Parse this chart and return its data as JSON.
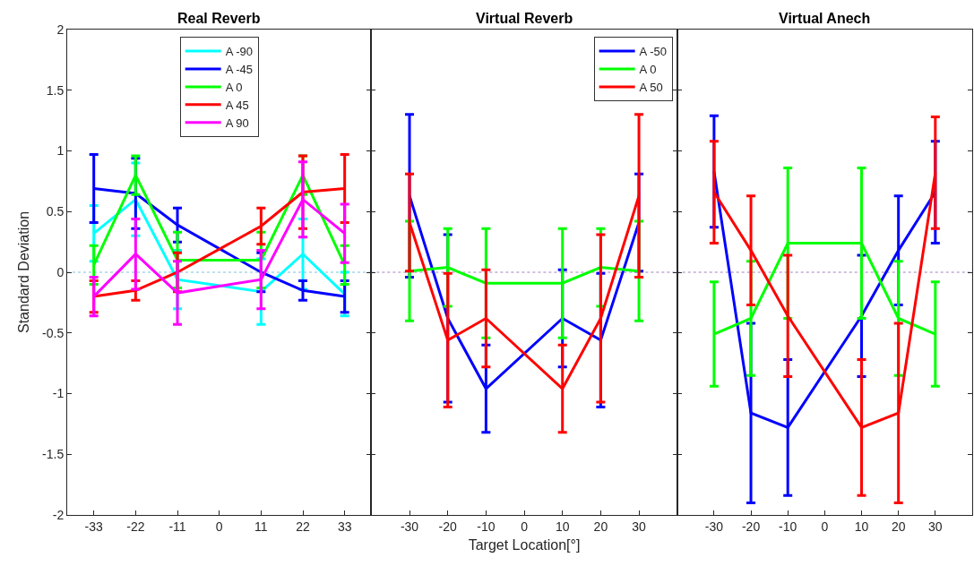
{
  "chart_data": [
    {
      "type": "line",
      "title": "Real Reverb",
      "ylabel": "Standard Deviation",
      "x": [
        -33,
        -22,
        -11,
        11,
        22,
        33
      ],
      "xlim": [
        -40,
        40
      ],
      "xticks": [
        -33,
        -22,
        -11,
        0,
        11,
        22,
        33
      ],
      "ylim": [
        -2,
        2
      ],
      "yticks": [
        -2,
        -1.5,
        -1,
        -0.5,
        0,
        0.5,
        1,
        1.5,
        2
      ],
      "grid": false,
      "legend": "top",
      "marker": "none",
      "line_style": "solid",
      "ref_lines": [
        {
          "axis": "y",
          "value": 0,
          "color": "#7fbfdf",
          "line_style": "dotted"
        }
      ],
      "series": [
        {
          "name": "A -90",
          "color": "#00ffff",
          "values": [
            0.32,
            0.6,
            -0.06,
            -0.16,
            0.15,
            -0.18
          ],
          "errors": [
            0.23,
            0.3,
            0.24,
            0.27,
            0.29,
            0.18
          ]
        },
        {
          "name": "A -45",
          "color": "#0000ff",
          "values": [
            0.69,
            0.65,
            0.39,
            0.0,
            -0.15,
            -0.2
          ],
          "errors": [
            0.28,
            0.29,
            0.14,
            0.16,
            0.08,
            0.13
          ]
        },
        {
          "name": "A 0",
          "color": "#00ff00",
          "values": [
            0.06,
            0.8,
            0.1,
            0.1,
            0.8,
            0.06
          ],
          "errors": [
            0.16,
            0.16,
            0.23,
            0.23,
            0.16,
            0.16
          ]
        },
        {
          "name": "A 45",
          "color": "#ff0000",
          "values": [
            -0.2,
            -0.15,
            0.0,
            0.38,
            0.66,
            0.69
          ],
          "errors": [
            0.13,
            0.08,
            0.16,
            0.15,
            0.3,
            0.28
          ]
        },
        {
          "name": "A 90",
          "color": "#ff00ff",
          "values": [
            -0.2,
            0.15,
            -0.17,
            -0.06,
            0.6,
            0.32
          ],
          "errors": [
            0.16,
            0.29,
            0.26,
            0.24,
            0.31,
            0.24
          ]
        }
      ]
    },
    {
      "type": "line",
      "title": "Virtual Reverb",
      "xlabel": "Target Location[°]",
      "x": [
        -30,
        -20,
        -10,
        10,
        20,
        30
      ],
      "xlim": [
        -40,
        40
      ],
      "xticks": [
        -30,
        -20,
        -10,
        0,
        10,
        20,
        30
      ],
      "ylim": [
        -2,
        2
      ],
      "yticks": [
        -2,
        -1.5,
        -1,
        -0.5,
        0,
        0.5,
        1,
        1.5,
        2
      ],
      "tick_labels": "x",
      "grid": false,
      "legend": "top right",
      "marker": "none",
      "line_style": "solid",
      "ref_lines": [
        {
          "axis": "y",
          "value": 0,
          "color": "#a080c0",
          "line_style": "dotted"
        }
      ],
      "series": [
        {
          "name": "A -50",
          "color": "#0000ff",
          "values": [
            0.63,
            -0.38,
            -0.96,
            -0.38,
            -0.56,
            0.41
          ],
          "errors": [
            0.67,
            0.69,
            0.36,
            0.4,
            0.55,
            0.4
          ]
        },
        {
          "name": "A 0",
          "color": "#00ff00",
          "values": [
            0.01,
            0.04,
            -0.09,
            -0.09,
            0.04,
            0.01
          ],
          "errors": [
            0.41,
            0.32,
            0.45,
            0.45,
            0.32,
            0.41
          ]
        },
        {
          "name": "A 50",
          "color": "#ff0000",
          "values": [
            0.41,
            -0.56,
            -0.38,
            -0.96,
            -0.38,
            0.63
          ],
          "errors": [
            0.4,
            0.55,
            0.4,
            0.36,
            0.69,
            0.67
          ]
        }
      ]
    },
    {
      "type": "line",
      "title": "Virtual Anech",
      "x": [
        -30,
        -20,
        -10,
        10,
        20,
        30
      ],
      "xlim": [
        -40,
        40
      ],
      "xticks": [
        -30,
        -20,
        -10,
        0,
        10,
        20,
        30
      ],
      "ylim": [
        -2,
        2
      ],
      "yticks": [
        -2,
        -1.5,
        -1,
        -0.5,
        0,
        0.5,
        1,
        1.5,
        2
      ],
      "tick_labels": "x",
      "grid": false,
      "marker": "none",
      "line_style": "solid",
      "ref_lines": [
        {
          "axis": "y",
          "value": 0,
          "color": "#a080c0",
          "line_style": "dotted"
        }
      ],
      "series": [
        {
          "color": "#0000ff",
          "values": [
            0.83,
            -1.16,
            -1.28,
            -0.36,
            0.18,
            0.66
          ],
          "errors": [
            0.46,
            0.74,
            0.56,
            0.5,
            0.45,
            0.42
          ]
        },
        {
          "color": "#00ff00",
          "values": [
            -0.51,
            -0.38,
            0.24,
            0.24,
            -0.38,
            -0.51
          ],
          "errors": [
            0.43,
            0.47,
            0.62,
            0.62,
            0.47,
            0.43
          ]
        },
        {
          "color": "#ff0000",
          "values": [
            0.66,
            0.18,
            -0.36,
            -1.28,
            -1.16,
            0.82
          ],
          "errors": [
            0.42,
            0.45,
            0.5,
            0.56,
            0.74,
            0.46
          ]
        }
      ]
    }
  ]
}
